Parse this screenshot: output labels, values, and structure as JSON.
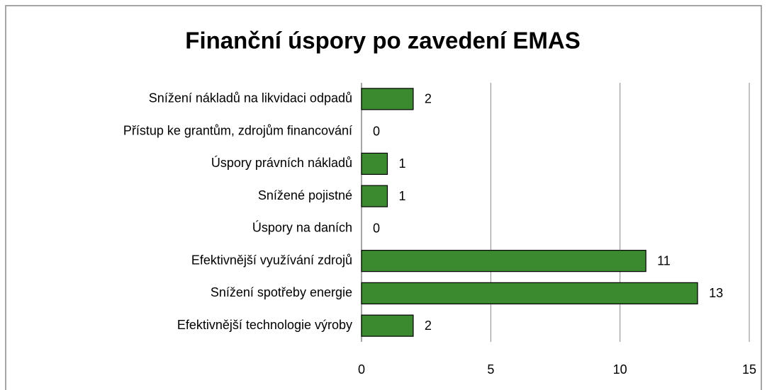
{
  "chart_data": {
    "type": "barh",
    "title": "Finanční úspory po zavedení EMAS",
    "categories": [
      "Snížení nákladů na likvidaci odpadů",
      "Přístup ke grantům, zdrojům financování",
      "Úspory právních nákladů",
      "Snížené pojistné",
      "Úspory na daních",
      "Efektivnější využívání zdrojů",
      "Snížení spotřeby energie",
      "Efektivnější technologie výroby"
    ],
    "values": [
      2,
      0,
      1,
      1,
      0,
      11,
      13,
      2
    ],
    "color": "#3b8a2f",
    "xlim": [
      0,
      15
    ],
    "xticks": [
      0,
      5,
      10,
      15
    ],
    "grid": true
  }
}
